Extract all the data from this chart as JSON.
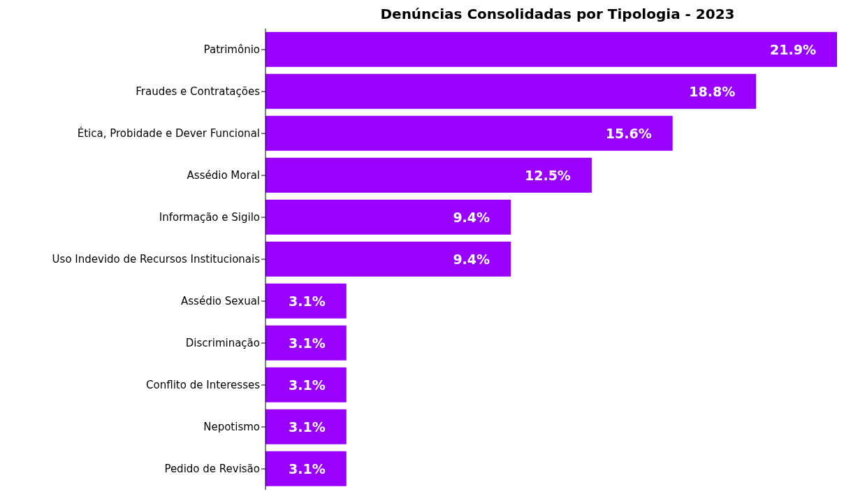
{
  "chart_data": {
    "type": "bar",
    "orientation": "horizontal",
    "title": "Denúncias Consolidadas por Tipologia - 2023",
    "categories": [
      "Patrimônio",
      "Fraudes e Contratações",
      "Ética, Probidade e Dever Funcional",
      "Assédio Moral",
      "Informação e Sigilo",
      "Uso Indevido de Recursos Institucionais",
      "Assédio Sexual",
      "Discriminação",
      "Conflito de Interesses",
      "Nepotismo",
      "Pedido de Revisão"
    ],
    "values": [
      21.9,
      18.8,
      15.6,
      12.5,
      9.4,
      9.4,
      3.1,
      3.1,
      3.1,
      3.1,
      3.1
    ],
    "value_labels": [
      "21.9%",
      "18.8%",
      "15.6%",
      "12.5%",
      "9.4%",
      "9.4%",
      "3.1%",
      "3.1%",
      "3.1%",
      "3.1%",
      "3.1%"
    ],
    "color": "#9900ff",
    "tick_labels": "y"
  }
}
